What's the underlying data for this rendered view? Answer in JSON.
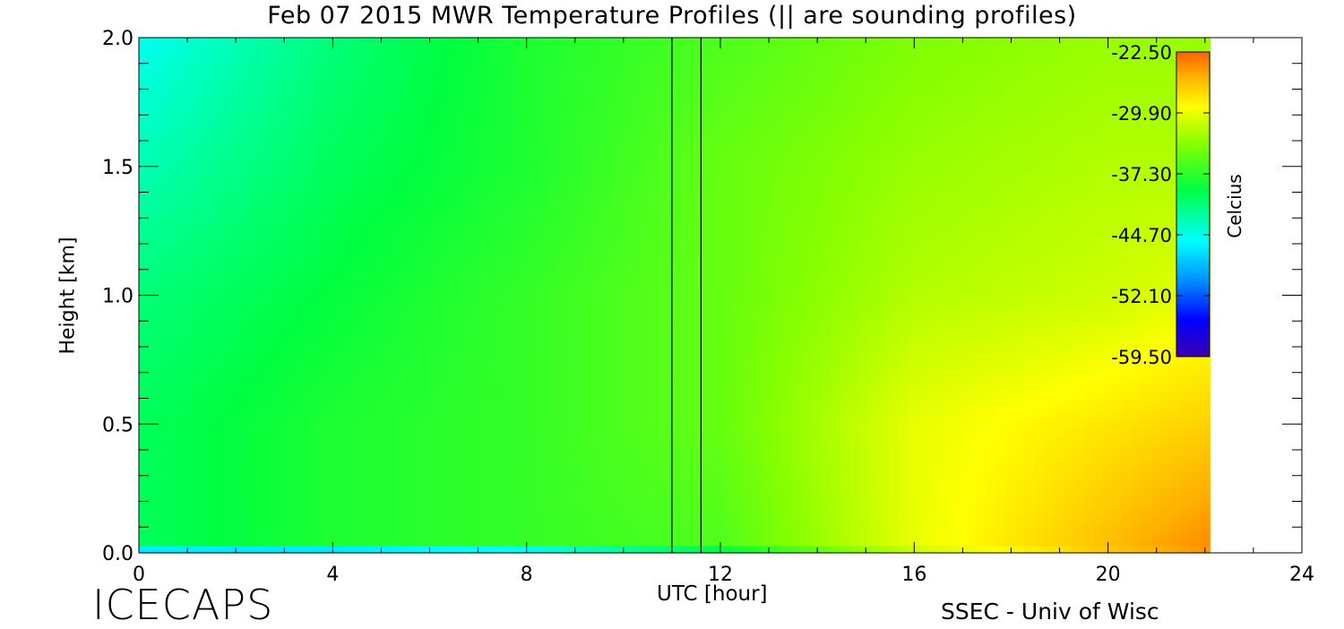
{
  "chart_data": {
    "type": "heatmap",
    "title": "Feb 07 2015 MWR Temperature Profiles (|| are sounding profiles)",
    "xlabel": "UTC [hour]",
    "ylabel": "Height [km]",
    "xlim": [
      0,
      24
    ],
    "ylim": [
      0,
      2
    ],
    "x_ticks": [
      "0",
      "4",
      "8",
      "12",
      "16",
      "20",
      "24"
    ],
    "y_ticks": [
      "0.0",
      "0.5",
      "1.0",
      "1.5",
      "2.0"
    ],
    "data_x_range": [
      0,
      22.1
    ],
    "sounding_profiles_utc": [
      11.0,
      11.6
    ],
    "colorbar": {
      "label": "Celcius",
      "ticks": [
        "-22.50",
        "-29.90",
        "-37.30",
        "-44.70",
        "-52.10",
        "-59.50"
      ],
      "range": [
        -59.5,
        -22.5
      ]
    },
    "approx_temperature_field": {
      "x_hours": [
        0,
        4,
        8,
        12,
        16,
        20,
        22
      ],
      "heights_km": [
        0.0,
        0.5,
        1.0,
        1.5,
        2.0
      ],
      "values_celsius": [
        [
          -40,
          -38,
          -37,
          -36,
          -30,
          -26,
          -24
        ],
        [
          -40,
          -38,
          -37,
          -35,
          -30,
          -28,
          -27
        ],
        [
          -41,
          -39,
          -37,
          -35,
          -32,
          -31,
          -30
        ],
        [
          -43,
          -40,
          -38,
          -35,
          -33,
          -32,
          -32
        ],
        [
          -45,
          -41,
          -38,
          -36,
          -34,
          -33,
          -33
        ]
      ],
      "surface_layer_celsius": [
        -52,
        -54,
        -52,
        -42,
        -32,
        -27,
        -25
      ]
    }
  },
  "footer": {
    "logo": "ICECAPS",
    "credit": "SSEC - Univ of Wisc"
  }
}
